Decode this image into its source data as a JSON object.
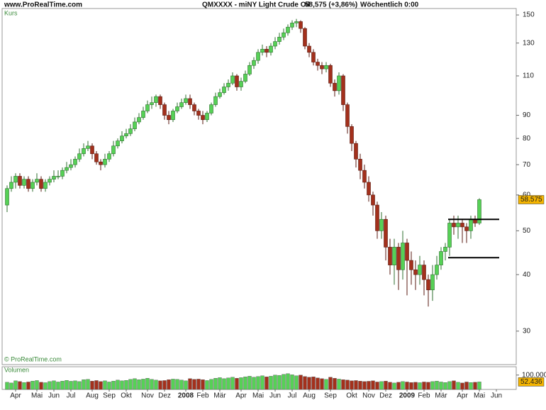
{
  "chart_data": {
    "type": "candlestick",
    "site": "www.ProRealTime.com",
    "title": "QMXXXX - miNY Light Crude Oil",
    "quote": "58,575 (+3,86%)",
    "period": "Wöchentlich 0:00",
    "panel_label": "Kurs",
    "copyright": "© ProRealTime.com",
    "up_color": "#56d156",
    "down_color": "#a3301c",
    "log_scale": true,
    "ylim": [
      25.3,
      155
    ],
    "yticks": [
      30,
      40,
      50,
      60,
      70,
      80,
      90,
      110,
      130,
      150
    ],
    "hlines": [
      53,
      43.6
    ],
    "categories": [
      null,
      null,
      "Apr",
      null,
      null,
      null,
      null,
      "Mai",
      null,
      null,
      null,
      "Jun",
      null,
      null,
      null,
      "Jul",
      null,
      null,
      null,
      null,
      "Aug",
      null,
      null,
      null,
      "Sep",
      null,
      null,
      null,
      "Okt",
      null,
      null,
      null,
      null,
      "Nov",
      null,
      null,
      null,
      "Dez",
      null,
      null,
      null,
      null,
      "2008",
      null,
      null,
      null,
      "Feb",
      null,
      null,
      null,
      "Mär",
      null,
      null,
      null,
      null,
      "Apr",
      null,
      null,
      null,
      "Mai",
      null,
      null,
      null,
      "Jun",
      null,
      null,
      null,
      "Jul",
      null,
      null,
      null,
      "Aug",
      null,
      null,
      null,
      null,
      "Sep",
      null,
      null,
      null,
      null,
      "Okt",
      null,
      null,
      null,
      "Nov",
      null,
      null,
      null,
      "Dez",
      null,
      null,
      null,
      null,
      "2009",
      null,
      null,
      null,
      "Feb",
      null,
      null,
      null,
      "Mär",
      null,
      null,
      null,
      null,
      "Apr",
      null,
      null,
      null,
      "Mai",
      null,
      null,
      null,
      "Jun"
    ],
    "ohlc": {
      "open": [
        57,
        62,
        64,
        66,
        63,
        65,
        62,
        64,
        65,
        62,
        64,
        65,
        66,
        66,
        68,
        69,
        70,
        72,
        74,
        76,
        77,
        74,
        71,
        70,
        72,
        74,
        77,
        79,
        81,
        82,
        84,
        87,
        89,
        92,
        95,
        96,
        99,
        95,
        90,
        88,
        92,
        94,
        96,
        98,
        95,
        92,
        90,
        88,
        91,
        95,
        99,
        101,
        104,
        106,
        110,
        104,
        107,
        111,
        116,
        119,
        124,
        126,
        124,
        128,
        131,
        134,
        137,
        141,
        144,
        145,
        140,
        128,
        124,
        118,
        116,
        114,
        116,
        106,
        102,
        110,
        95,
        85,
        78,
        72,
        68,
        64,
        60,
        57,
        50,
        53,
        46,
        42,
        46,
        41,
        47,
        43,
        41,
        40,
        42,
        39,
        37,
        40,
        42,
        45,
        46,
        52,
        51,
        52,
        51,
        50,
        53,
        52,
        null,
        null,
        null,
        null
      ],
      "high": [
        63,
        66,
        67,
        67,
        66,
        66,
        65,
        67,
        66,
        65,
        66,
        68,
        68,
        69,
        71,
        72,
        73,
        76,
        78,
        79,
        78,
        75,
        72,
        74,
        75,
        79,
        80,
        83,
        84,
        86,
        89,
        91,
        94,
        97,
        99,
        100,
        100,
        96,
        92,
        93,
        96,
        98,
        100,
        100,
        96,
        93,
        92,
        92,
        96,
        101,
        103,
        106,
        108,
        112,
        111,
        109,
        113,
        118,
        121,
        126,
        129,
        128,
        130,
        134,
        137,
        140,
        143,
        146,
        147,
        146,
        141,
        130,
        126,
        120,
        118,
        118,
        117,
        108,
        112,
        111,
        96,
        86,
        79,
        74,
        70,
        66,
        61,
        58,
        55,
        54,
        48,
        48,
        47,
        50,
        48,
        45,
        43,
        44,
        43,
        40,
        42,
        44,
        46,
        47,
        53,
        54,
        54,
        53,
        52,
        54,
        54,
        59,
        null,
        null,
        null,
        null
      ],
      "low": [
        55,
        61,
        62,
        62,
        62,
        61,
        61,
        63,
        61,
        61,
        63,
        64,
        65,
        65,
        67,
        68,
        69,
        71,
        73,
        75,
        72,
        70,
        68,
        69,
        71,
        73,
        76,
        78,
        80,
        81,
        83,
        86,
        88,
        91,
        93,
        94,
        93,
        88,
        86,
        87,
        91,
        93,
        95,
        93,
        90,
        88,
        86,
        87,
        90,
        94,
        98,
        100,
        102,
        105,
        102,
        102,
        106,
        110,
        114,
        117,
        122,
        121,
        122,
        126,
        129,
        132,
        135,
        139,
        141,
        137,
        126,
        121,
        116,
        113,
        111,
        112,
        104,
        99,
        100,
        92,
        82,
        75,
        69,
        65,
        62,
        58,
        54,
        48,
        48,
        43,
        40,
        38,
        37,
        39,
        36,
        38,
        37,
        38,
        36,
        34,
        35,
        39,
        41,
        43,
        44,
        49,
        48,
        47,
        47,
        48,
        51,
        51.5,
        null,
        null,
        null,
        null
      ],
      "close": [
        62,
        64,
        66,
        63,
        65,
        62,
        64,
        65,
        62,
        64,
        65,
        66,
        66,
        68,
        69,
        70,
        72,
        74,
        76,
        77,
        74,
        71,
        70,
        72,
        74,
        77,
        79,
        81,
        82,
        84,
        87,
        89,
        92,
        95,
        96,
        99,
        95,
        90,
        88,
        92,
        94,
        96,
        98,
        95,
        92,
        90,
        88,
        91,
        95,
        99,
        101,
        104,
        106,
        110,
        104,
        107,
        111,
        116,
        119,
        124,
        126,
        124,
        128,
        131,
        134,
        137,
        141,
        144,
        145,
        140,
        128,
        124,
        118,
        116,
        114,
        116,
        106,
        102,
        110,
        95,
        85,
        78,
        72,
        68,
        64,
        60,
        57,
        50,
        53,
        46,
        42,
        46,
        41,
        47,
        43,
        41,
        40,
        42,
        39,
        37,
        40,
        42,
        45,
        46,
        52,
        51,
        52,
        51,
        50,
        53,
        52,
        58.575,
        null,
        null,
        null,
        null
      ]
    },
    "volume": {
      "label": "Volumen",
      "ylim": [
        0,
        158000
      ],
      "yticks": [
        {
          "value": 100000,
          "label": "100.000"
        }
      ],
      "values": [
        50000,
        45000,
        60000,
        55000,
        48000,
        52000,
        58000,
        62000,
        50000,
        47000,
        55000,
        60000,
        52000,
        58000,
        63000,
        57000,
        60000,
        55000,
        68000,
        70000,
        58000,
        62000,
        55000,
        60000,
        52000,
        58000,
        65000,
        60000,
        63000,
        70000,
        75000,
        68000,
        72000,
        78000,
        70000,
        65000,
        60000,
        62000,
        68000,
        72000,
        70000,
        65000,
        60000,
        75000,
        70000,
        72000,
        68000,
        62000,
        70000,
        78000,
        82000,
        75000,
        80000,
        85000,
        78000,
        82000,
        88000,
        92000,
        85000,
        90000,
        95000,
        88000,
        92000,
        100000,
        98000,
        105000,
        110000,
        102000,
        95000,
        100000,
        90000,
        85000,
        88000,
        80000,
        75000,
        70000,
        85000,
        78000,
        72000,
        68000,
        65000,
        60000,
        62000,
        58000,
        55000,
        57000,
        60000,
        52000,
        55000,
        58000,
        50000,
        45000,
        50000,
        55000,
        52000,
        48000,
        50000,
        47000,
        52000,
        50000,
        55000,
        58000,
        52000,
        48000,
        55000,
        60000,
        50000,
        45000,
        52000,
        48000,
        50000,
        52436,
        null,
        null,
        null,
        null
      ],
      "value_labels": [
        null,
        null,
        null,
        null,
        null,
        null,
        null,
        null,
        null,
        null,
        null,
        null,
        null,
        null,
        null,
        null,
        null,
        null,
        null,
        null,
        null,
        null,
        null,
        null,
        null,
        null,
        null,
        null,
        null,
        null,
        null,
        null,
        null,
        null,
        null,
        null,
        null,
        null,
        null,
        null,
        null,
        null,
        null,
        null,
        null,
        null,
        null,
        null,
        null,
        null,
        null,
        null,
        null,
        null,
        null,
        null,
        null,
        null,
        null,
        null,
        null,
        null,
        null,
        null,
        null,
        null,
        null,
        null,
        null,
        null,
        null,
        null,
        null,
        null,
        null,
        null,
        null,
        null,
        null,
        null,
        null,
        null,
        null,
        null,
        null,
        null,
        null,
        null,
        null,
        null,
        null,
        null,
        null,
        null,
        null,
        null,
        null,
        null,
        null,
        null,
        null,
        null,
        null,
        null,
        null,
        null,
        null,
        null,
        null,
        null,
        null,
        "52.436",
        null,
        null,
        null,
        null
      ]
    }
  }
}
